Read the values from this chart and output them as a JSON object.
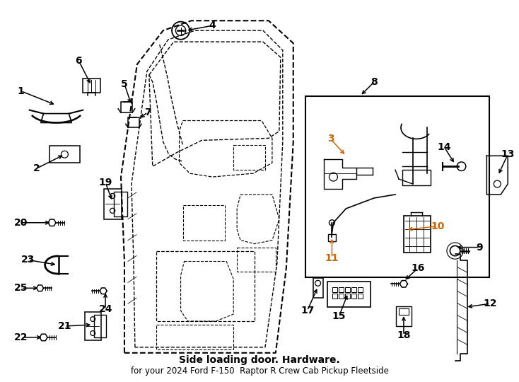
{
  "bg_color": "#ffffff",
  "line_color": "#000000",
  "orange_color": "#cc6600",
  "title": "Side loading door. Hardware.",
  "subtitle": "for your 2024 Ford F-150  Raptor R Crew Cab Pickup Fleetside",
  "figsize": [
    7.34,
    5.4
  ],
  "dpi": 100,
  "orange_labels": [
    "3",
    "10",
    "11"
  ]
}
